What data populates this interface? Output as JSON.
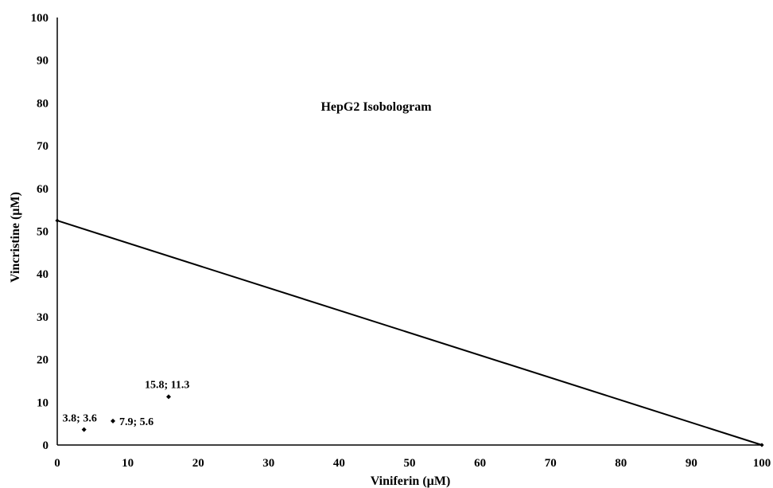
{
  "chart_data": {
    "type": "scatter",
    "title": "HepG2 Isobologram",
    "xlabel": "Viniferin (µM)",
    "ylabel": "Vincristine (µM)",
    "xlim": [
      0,
      100
    ],
    "ylim": [
      0,
      100
    ],
    "x_ticks": [
      0,
      10,
      20,
      30,
      40,
      50,
      60,
      70,
      80,
      90,
      100
    ],
    "y_ticks": [
      0,
      10,
      20,
      30,
      40,
      50,
      60,
      70,
      80,
      90,
      100
    ],
    "grid": false,
    "additivity_line": {
      "x": [
        0,
        100
      ],
      "y": [
        52.5,
        0
      ]
    },
    "points": [
      {
        "x": 3.8,
        "y": 3.6,
        "label": "3.8; 3.6"
      },
      {
        "x": 7.9,
        "y": 5.6,
        "label": "7.9; 5.6"
      },
      {
        "x": 15.8,
        "y": 11.3,
        "label": "15.8; 11.3"
      }
    ]
  }
}
